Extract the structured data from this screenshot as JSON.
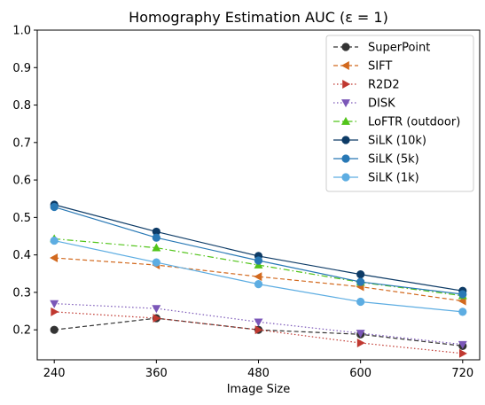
{
  "chart_data": {
    "type": "line",
    "title": "Homography Estimation AUC (ε = 1)",
    "xlabel": "Image Size",
    "ylabel": "",
    "x": [
      240,
      360,
      480,
      600,
      720
    ],
    "x_tick_labels": [
      "240",
      "360",
      "480",
      "600",
      "720"
    ],
    "ylim": [
      0.12,
      1.0
    ],
    "y_ticks": [
      0.2,
      0.3,
      0.4,
      0.5,
      0.6,
      0.7,
      0.8,
      0.9,
      1.0
    ],
    "y_tick_labels": [
      "0.2",
      "0.3",
      "0.4",
      "0.5",
      "0.6",
      "0.7",
      "0.8",
      "0.9",
      "1.0"
    ],
    "grid": false,
    "legend_position": "top-right",
    "series": [
      {
        "name": "SuperPoint",
        "color": "#333333",
        "marker": "circle",
        "dash": "dashed",
        "values": [
          0.2,
          0.231,
          0.2,
          0.188,
          0.157
        ]
      },
      {
        "name": "SIFT",
        "color": "#d2691e",
        "marker": "triangle-left",
        "dash": "dashed",
        "values": [
          0.392,
          0.373,
          0.342,
          0.315,
          0.277
        ]
      },
      {
        "name": "R2D2",
        "color": "#c03830",
        "marker": "triangle-right",
        "dash": "dotted",
        "values": [
          0.248,
          0.231,
          0.2,
          0.165,
          0.137
        ]
      },
      {
        "name": "DISK",
        "color": "#7b57b8",
        "marker": "triangle-down",
        "dash": "dotted",
        "values": [
          0.27,
          0.257,
          0.221,
          0.191,
          0.161
        ]
      },
      {
        "name": "LoFTR (outdoor)",
        "color": "#52c41a",
        "marker": "triangle-up",
        "dash": "dashdot",
        "values": [
          0.443,
          0.419,
          0.373,
          0.327,
          0.291
        ]
      },
      {
        "name": "SiLK (10k)",
        "color": "#0d3b66",
        "marker": "circle",
        "dash": "solid",
        "values": [
          0.534,
          0.462,
          0.397,
          0.348,
          0.304
        ]
      },
      {
        "name": "SiLK (5k)",
        "color": "#2878b5",
        "marker": "circle",
        "dash": "solid",
        "values": [
          0.528,
          0.446,
          0.385,
          0.328,
          0.295
        ]
      },
      {
        "name": "SiLK (1k)",
        "color": "#5dade2",
        "marker": "circle",
        "dash": "solid",
        "values": [
          0.438,
          0.38,
          0.322,
          0.275,
          0.248
        ]
      }
    ]
  }
}
